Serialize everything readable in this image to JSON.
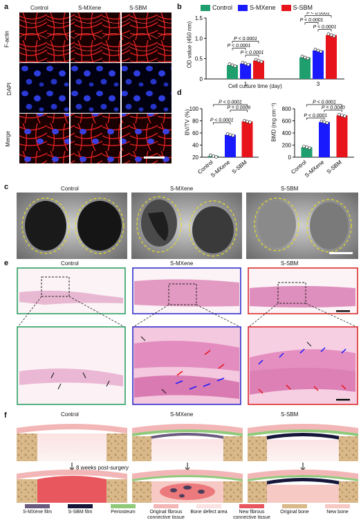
{
  "panels": {
    "a": "a",
    "b": "b",
    "c": "c",
    "d": "d",
    "e": "e",
    "f": "f"
  },
  "groups": [
    "Control",
    "S-MXene",
    "S-SBM"
  ],
  "colors": {
    "control": "#1f9e6e",
    "smxene": "#1a1aff",
    "ssbm": "#e8141b",
    "green_frame": "#1d9a5a",
    "blue_frame": "#2222c8",
    "red_frame": "#d81e1e"
  },
  "panel_a": {
    "rows": [
      "F-actin",
      "DAPI",
      "Merge"
    ]
  },
  "panel_b": {
    "chart_data": {
      "type": "bar",
      "categories": [
        "1",
        "3"
      ],
      "series": [
        {
          "name": "Control",
          "values": [
            0.34,
            0.53
          ]
        },
        {
          "name": "S-MXene",
          "values": [
            0.38,
            0.7
          ]
        },
        {
          "name": "S-SBM",
          "values": [
            0.45,
            1.08
          ]
        }
      ],
      "ylabel": "OD value (450 nm)",
      "xlabel": "Cell culture time (day)",
      "ylim": [
        0,
        1.5
      ],
      "yticks": [
        "0",
        "0.5",
        "1.0",
        "1.5"
      ],
      "annotations": [
        "P < 0.0001",
        "P < 0.0001",
        "P < 0.0001",
        "P < 0.0001",
        "P < 0.0001",
        "P < 0.0001"
      ],
      "legend": "top"
    }
  },
  "panel_d": {
    "chart_data": [
      {
        "type": "bar",
        "categories": [
          "Control",
          "S-MXene",
          "S-SBM"
        ],
        "values": [
          22,
          57,
          79
        ],
        "ylabel": "BV/TV (%)",
        "ylim": [
          20,
          100
        ],
        "yticks": [
          "20",
          "40",
          "60",
          "80",
          "100"
        ],
        "annotations": [
          "P < 0.0001",
          "P = 0.0006",
          "P < 0.0001"
        ]
      },
      {
        "type": "bar",
        "categories": [
          "Control",
          "S-MXene",
          "S-SBM"
        ],
        "values": [
          165,
          580,
          690
        ],
        "ylabel": "BMD (mg cm⁻³)",
        "ylim": [
          0,
          800
        ],
        "yticks": [
          "0",
          "200",
          "400",
          "600",
          "800"
        ],
        "annotations": [
          "P < 0.0001",
          "P = 0.0040",
          "P < 0.0001"
        ]
      }
    ]
  },
  "panel_f": {
    "arrow_label": "8 weeks post-surgery",
    "legend": [
      {
        "label": "S-MXene film",
        "color": "#6a5a7e"
      },
      {
        "label": "S-SBM film",
        "color": "#16163a"
      },
      {
        "label": "Periosteum",
        "color": "#8fc97a"
      },
      {
        "label": "Original fibrous connective tissue",
        "color": "#f3b6b6"
      },
      {
        "label": "Bone defect area",
        "color": "#fbe3e3"
      },
      {
        "label": "New fibrous connective tissue",
        "color": "#e8575e"
      },
      {
        "label": "Original bone",
        "color": "#d9b98a"
      },
      {
        "label": "New bone",
        "color": "#f6c9c4"
      }
    ]
  }
}
